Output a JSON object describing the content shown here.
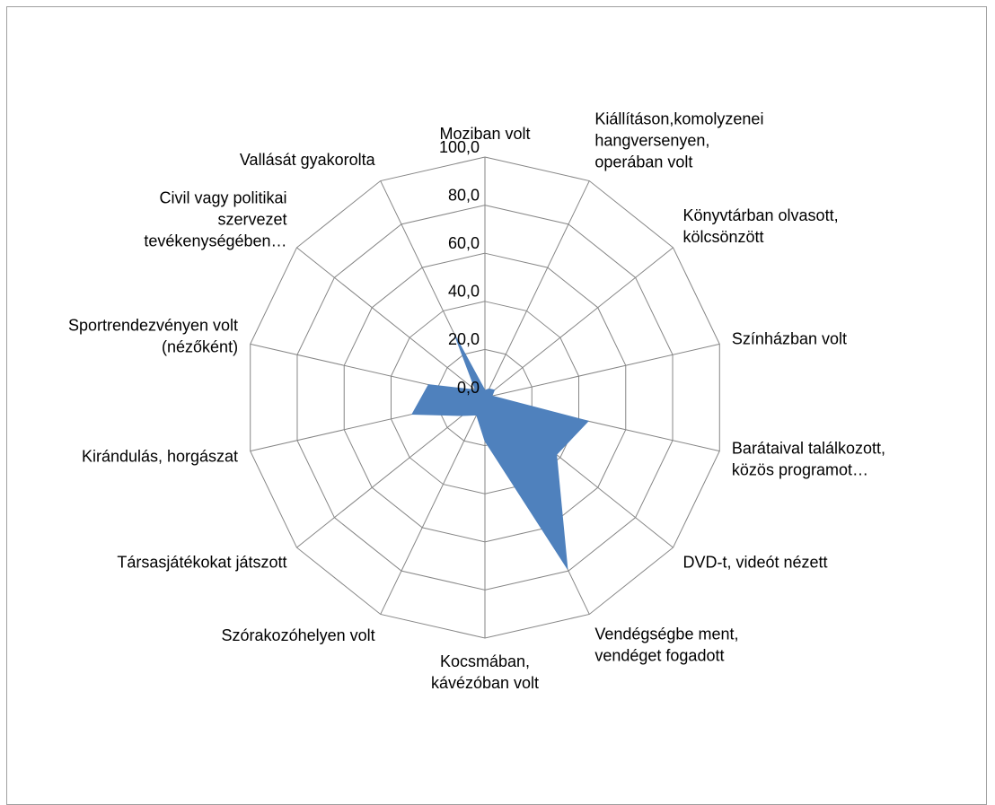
{
  "chart_data": {
    "type": "radar",
    "categories": [
      "Moziban volt",
      "Kiállításon,komolyzenei hangversenyen, operában volt",
      "Könyvtárban olvasott, kölcsönzött",
      "Színházban volt",
      "Barátaival találkozott, közös programot…",
      "DVD-t, videót nézett",
      "Vendégségbe ment, vendéget fogadott",
      "Kocsmában, kávézóban volt",
      "Szórakozóhelyen volt",
      "Társasjátékokat játszott",
      "Kirándulás, horgászat",
      "Sportrendezvényen volt (nézőként)",
      "Civil vagy politikai szervezet tevékenységében…",
      "Vallását gyakorolta"
    ],
    "values": [
      3,
      4,
      5,
      3,
      44,
      38,
      79,
      18,
      8,
      12,
      31,
      24,
      5,
      29
    ],
    "color": "#4f81bd",
    "ylim": [
      0,
      100
    ],
    "yticks": [
      {
        "value": 0,
        "label": "0,0"
      },
      {
        "value": 20,
        "label": "20,0"
      },
      {
        "value": 40,
        "label": "40,0"
      },
      {
        "value": 60,
        "label": "60,0"
      },
      {
        "value": 80,
        "label": "80,0"
      },
      {
        "value": 100,
        "label": "100,0"
      }
    ],
    "grid": true
  }
}
